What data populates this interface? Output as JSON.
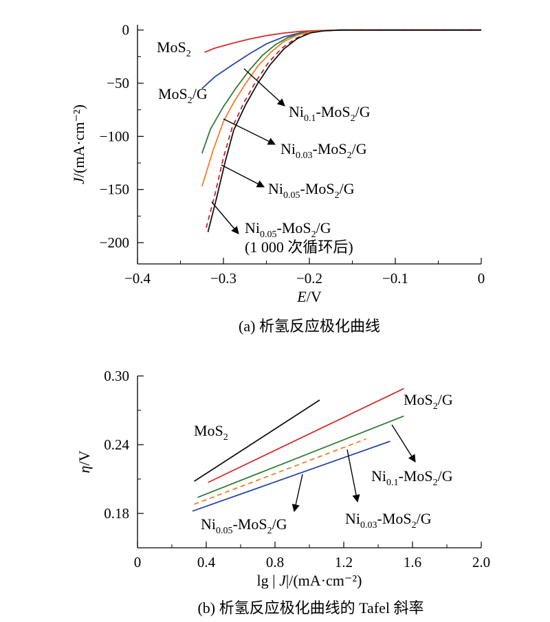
{
  "chart_data": [
    {
      "type": "line",
      "title": "(a) 析氢反应极化曲线",
      "xlabel_var": "E",
      "xlabel_unit": "/V",
      "ylabel_var": "J",
      "ylabel_unit": "/(mA·cm⁻²)",
      "xlim": [
        -0.4,
        0
      ],
      "ylim": [
        -220,
        5
      ],
      "xticks": [
        -0.4,
        -0.3,
        -0.2,
        -0.1,
        0
      ],
      "xtick_labels": [
        "−0.4",
        "−0.3",
        "−0.2",
        "−0.1",
        "0"
      ],
      "yticks": [
        0,
        -50,
        -100,
        -150,
        -200
      ],
      "ytick_labels": [
        "0",
        "−50",
        "−100",
        "−150",
        "−200"
      ],
      "series": [
        {
          "name": "MoS2",
          "color": "#d42a2a",
          "dash": false,
          "x": [
            -0.322,
            -0.31,
            -0.29,
            -0.27,
            -0.25,
            -0.23,
            -0.21,
            -0.19,
            -0.17,
            -0.15,
            0
          ],
          "y": [
            -21,
            -17,
            -12.5,
            -8.5,
            -5.2,
            -2.8,
            -1.2,
            -0.4,
            -0.1,
            0,
            0
          ]
        },
        {
          "name": "MoS2/G",
          "color": "#2646a6",
          "dash": false,
          "x": [
            -0.325,
            -0.31,
            -0.29,
            -0.27,
            -0.25,
            -0.23,
            -0.21,
            -0.19,
            -0.17,
            -0.15,
            0
          ],
          "y": [
            -55,
            -44,
            -33,
            -22.5,
            -13,
            -6.5,
            -2.5,
            -0.8,
            -0.2,
            0,
            0
          ]
        },
        {
          "name": "Ni0.1-MoS2/G",
          "color": "#2f7a2f",
          "dash": false,
          "x": [
            -0.325,
            -0.315,
            -0.3,
            -0.285,
            -0.27,
            -0.255,
            -0.24,
            -0.225,
            -0.21,
            -0.195,
            -0.18,
            -0.16,
            -0.14,
            0
          ],
          "y": [
            -116,
            -93,
            -72,
            -54,
            -38,
            -24,
            -14,
            -7,
            -3,
            -1,
            -0.3,
            0,
            0,
            0
          ]
        },
        {
          "name": "Ni0.03-MoS2/G",
          "color": "#f07d2b",
          "dash": false,
          "x": [
            -0.325,
            -0.312,
            -0.3,
            -0.288,
            -0.274,
            -0.26,
            -0.245,
            -0.23,
            -0.215,
            -0.2,
            -0.185,
            -0.165,
            -0.14,
            0
          ],
          "y": [
            -147,
            -113,
            -86,
            -68,
            -50,
            -34,
            -21,
            -11,
            -5,
            -1.8,
            -0.5,
            0,
            0,
            0
          ]
        },
        {
          "name": "Ni0.05-MoS2/G",
          "color": "#c41f2e",
          "dash": true,
          "x": [
            -0.32,
            -0.31,
            -0.3,
            -0.29,
            -0.276,
            -0.262,
            -0.248,
            -0.232,
            -0.215,
            -0.2,
            -0.185,
            -0.165,
            -0.14,
            0
          ],
          "y": [
            -186,
            -155,
            -120,
            -92,
            -68,
            -48,
            -31,
            -17,
            -7.5,
            -2.5,
            -0.7,
            0,
            0,
            0
          ]
        },
        {
          "name": "Ni0.05-MoS2/G (1 000 次循环后)",
          "color": "#111111",
          "dash": false,
          "x": [
            -0.318,
            -0.308,
            -0.298,
            -0.288,
            -0.274,
            -0.26,
            -0.246,
            -0.23,
            -0.214,
            -0.199,
            -0.184,
            -0.164,
            -0.14,
            0
          ],
          "y": [
            -190,
            -158,
            -124,
            -94,
            -70,
            -50,
            -33,
            -18,
            -8,
            -2.7,
            -0.8,
            0,
            0,
            0
          ]
        }
      ],
      "annotations": [
        {
          "base": "MoS",
          "sub": "2",
          "tail": ""
        },
        {
          "base": "MoS",
          "sub": "2",
          "tail": "/G"
        },
        {
          "base": "Ni",
          "sub": "0.1",
          "tail": "-MoS",
          "sub2": "2",
          "tail2": "/G"
        },
        {
          "base": "Ni",
          "sub": "0.03",
          "tail": "-MoS",
          "sub2": "2",
          "tail2": "/G"
        },
        {
          "base": "Ni",
          "sub": "0.05",
          "tail": "-MoS",
          "sub2": "2",
          "tail2": "/G"
        },
        {
          "base": "Ni",
          "sub": "0.05",
          "tail": "-MoS",
          "sub2": "2",
          "tail2": "/G",
          "line2": "(1 000 次循环后)"
        }
      ]
    },
    {
      "type": "line",
      "title": "(b) 析氢反应极化曲线的 Tafel 斜率",
      "xlabel_pre": "lg | ",
      "xlabel_var": "J",
      "xlabel_unit": "|/(mA·cm⁻²)",
      "ylabel_var": "η",
      "ylabel_unit": "/V",
      "xlim": [
        0,
        2.0
      ],
      "ylim": [
        0.15,
        0.3
      ],
      "xticks": [
        0,
        0.4,
        0.8,
        1.2,
        1.6,
        2.0
      ],
      "xtick_labels": [
        "0",
        "0.4",
        "0.8",
        "1.2",
        "1.6",
        "2.0"
      ],
      "yticks": [
        0.18,
        0.24,
        0.3
      ],
      "ytick_labels": [
        "0.18",
        "0.24",
        "0.30"
      ],
      "series": [
        {
          "name": "MoS2",
          "color": "#111111",
          "dash": false,
          "x": [
            0.33,
            1.06
          ],
          "y": [
            0.208,
            0.279
          ]
        },
        {
          "name": "MoS2/G",
          "color": "#d42a2a",
          "dash": false,
          "x": [
            0.41,
            1.55
          ],
          "y": [
            0.207,
            0.289
          ]
        },
        {
          "name": "Ni0.1-MoS2/G",
          "color": "#2f7a2f",
          "dash": false,
          "x": [
            0.35,
            1.55
          ],
          "y": [
            0.194,
            0.265
          ]
        },
        {
          "name": "Ni0.03-MoS2/G",
          "color": "#f07d2b",
          "dash": true,
          "x": [
            0.33,
            1.33
          ],
          "y": [
            0.188,
            0.245
          ]
        },
        {
          "name": "Ni0.05-MoS2/G",
          "color": "#2646a6",
          "dash": false,
          "x": [
            0.32,
            1.47
          ],
          "y": [
            0.182,
            0.243
          ]
        }
      ],
      "annotations": [
        {
          "base": "MoS",
          "sub": "2",
          "tail": ""
        },
        {
          "base": "MoS",
          "sub": "2",
          "tail": "/G"
        },
        {
          "base": "Ni",
          "sub": "0.1",
          "tail": "-MoS",
          "sub2": "2",
          "tail2": "/G"
        },
        {
          "base": "Ni",
          "sub": "0.03",
          "tail": "-MoS",
          "sub2": "2",
          "tail2": "/G"
        },
        {
          "base": "Ni",
          "sub": "0.05",
          "tail": "-MoS",
          "sub2": "2",
          "tail2": "/G"
        }
      ]
    }
  ]
}
